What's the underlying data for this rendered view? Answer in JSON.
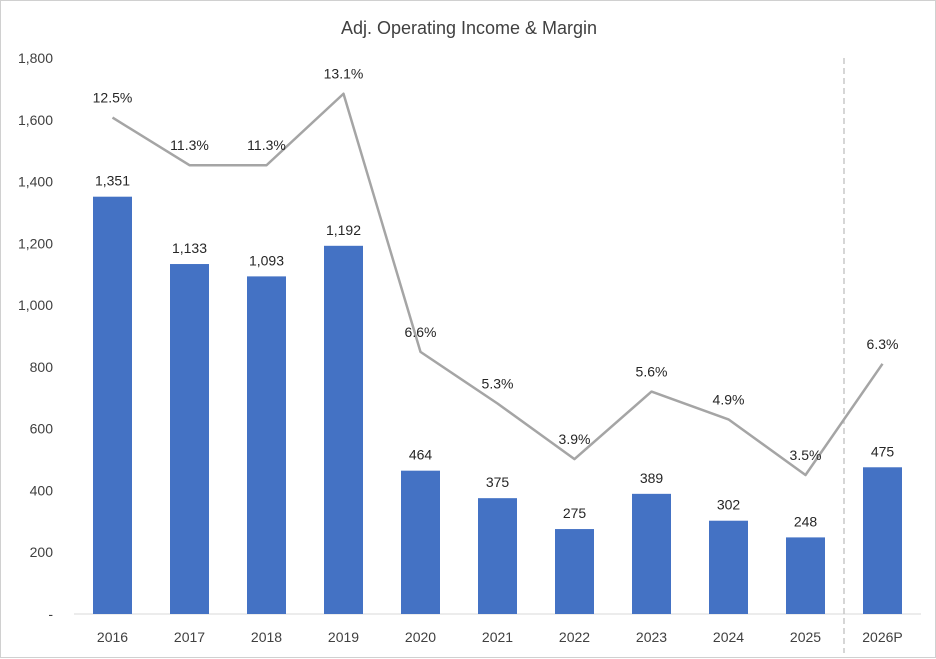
{
  "chart_data": {
    "type": "bar",
    "title": "Adj. Operating Income & Margin",
    "categories": [
      "2016",
      "2017",
      "2018",
      "2019",
      "2020",
      "2021",
      "2022",
      "2023",
      "2024",
      "2025",
      "2026P"
    ],
    "series": [
      {
        "type": "bar",
        "values": [
          1351,
          1133,
          1093,
          1192,
          464,
          375,
          275,
          389,
          302,
          248,
          475
        ],
        "labels": [
          "1,351",
          "1,133",
          "1,093",
          "1,192",
          "464",
          "375",
          "275",
          "389",
          "302",
          "248",
          "475"
        ],
        "color": "#4472C4"
      },
      {
        "type": "line",
        "axis": "unlabeled-secondary",
        "values": [
          12.5,
          11.3,
          11.3,
          13.1,
          6.6,
          5.3,
          3.9,
          5.6,
          4.9,
          3.5,
          6.3
        ],
        "labels": [
          "12.5%",
          "11.3%",
          "11.3%",
          "13.1%",
          "6.6%",
          "5.3%",
          "3.9%",
          "5.6%",
          "4.9%",
          "3.5%",
          "6.3%"
        ],
        "color": "#A5A5A5"
      }
    ],
    "y_ticks": [
      "-",
      "200",
      "400",
      "600",
      "800",
      "1,000",
      "1,200",
      "1,400",
      "1,600",
      "1,800"
    ],
    "ylim": [
      0,
      1800
    ],
    "secondary_ylim": [
      0,
      14
    ],
    "projection_divider_before": "2026P",
    "grid": false,
    "legend": "none"
  }
}
